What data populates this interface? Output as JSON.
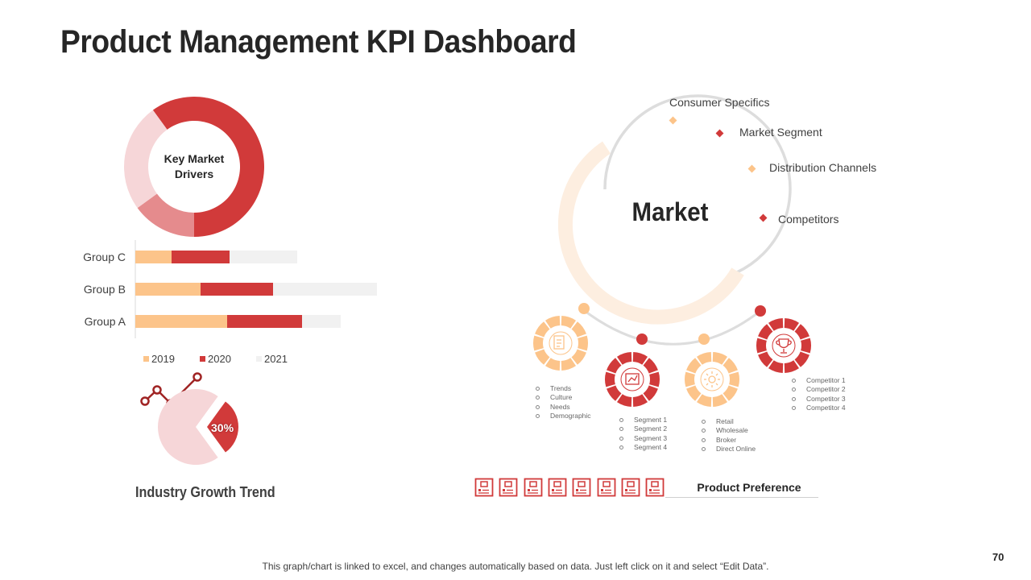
{
  "title": "Product Management KPI Dashboard",
  "colors": {
    "red": "#d13a3a",
    "light_orange": "#fcc48a",
    "pink": "#f6d6d8",
    "salmon": "#e58b8d",
    "gray_bar": "#f1f1f1",
    "cream": "#fdeee0",
    "ring_gray": "#dddddd"
  },
  "chart_data": [
    {
      "type": "pie",
      "title": "Key Market Drivers",
      "center_label": "Key Market Drivers",
      "values": [
        60,
        15,
        25
      ],
      "colors": [
        "#d13a3a",
        "#e58b8d",
        "#f6d6d8"
      ]
    },
    {
      "type": "bar",
      "orientation": "horizontal",
      "stacked": true,
      "categories": [
        "Group C",
        "Group B",
        "Group A"
      ],
      "series": [
        {
          "name": "2019",
          "values": [
            15,
            27,
            38
          ],
          "color": "#fcc48a"
        },
        {
          "name": "2020",
          "values": [
            24,
            30,
            31
          ],
          "color": "#d13a3a"
        },
        {
          "name": "2021",
          "values": [
            28,
            43,
            16
          ],
          "color": "#f1f1f1"
        }
      ],
      "xlim": [
        0,
        100
      ]
    },
    {
      "type": "pie",
      "title": "Industry Growth Trend",
      "values": [
        30,
        70
      ],
      "labels": [
        "30%",
        ""
      ],
      "colors": [
        "#d13a3a",
        "#f6d6d8"
      ]
    }
  ],
  "legend": {
    "items": [
      "2019",
      "2020",
      "2021"
    ]
  },
  "market": {
    "center_label": "Market",
    "points": [
      "Consumer Specifics",
      "Market Segment",
      "Distribution Channels",
      "Competitors"
    ],
    "groups": [
      {
        "name": "consumer",
        "items": [
          "Trends",
          "Culture",
          "Needs",
          "Demographic"
        ]
      },
      {
        "name": "segment",
        "items": [
          "Segment  1",
          "Segment  2",
          "Segment  3",
          "Segment  4"
        ]
      },
      {
        "name": "distribution",
        "items": [
          "Retail",
          "Wholesale",
          "Broker",
          "Direct Online"
        ]
      },
      {
        "name": "competitors",
        "items": [
          "Competitor  1",
          "Competitor  2",
          "Competitor  3",
          "Competitor  4"
        ]
      }
    ]
  },
  "product_preference": {
    "label": "Product Preference",
    "filled": 8,
    "total": 8
  },
  "industry_growth": {
    "label": "Industry Growth Trend",
    "value_label": "30%"
  },
  "footer": "This graph/chart is linked to excel, and changes automatically based on data. Just left click on it and select “Edit Data”.",
  "page_number": "70"
}
